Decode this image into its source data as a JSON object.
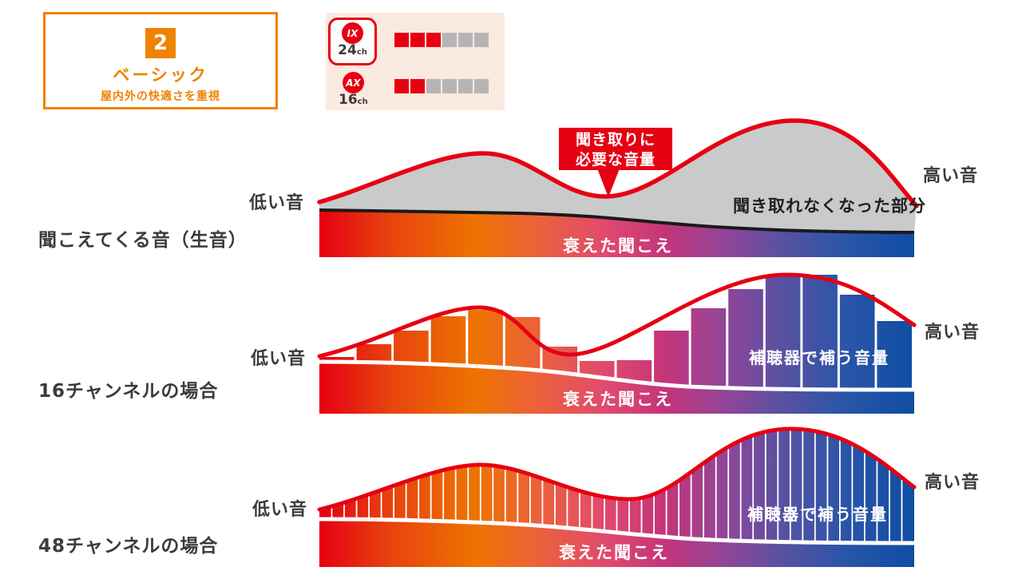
{
  "badge": {
    "number": "2",
    "title": "ベーシック",
    "subtitle": "屋内外の快適さを重視",
    "accent_color": "#ef8200"
  },
  "legend": {
    "bg_color": "#fbeae0",
    "filled_color": "#e60012",
    "empty_color": "#b5b5b6",
    "rows": [
      {
        "model": "IX",
        "num": "24",
        "unit": "ch",
        "filled": 3,
        "total": 6,
        "highlighted": true
      },
      {
        "model": "AX",
        "num": "16",
        "unit": "ch",
        "filled": 2,
        "total": 6,
        "highlighted": false
      }
    ]
  },
  "rows": [
    {
      "label": "聞こえてくる音（生音）"
    },
    {
      "label": "16チャンネルの場合"
    },
    {
      "label": "48チャンネルの場合"
    }
  ],
  "axis": {
    "low": "低い音",
    "high": "高い音"
  },
  "annotations": {
    "callout_line1": "聞き取りに",
    "callout_line2": "必要な音量",
    "lost_part": "聞き取れなくなった部分",
    "declined": "衰えた聞こえ",
    "aid_volume": "補聴器で補う音量"
  },
  "figure": {
    "red_curve_color": "#e60012",
    "gray_area_color": "#c9caca",
    "black_curve_color": "#1a1a1a",
    "gradient": [
      {
        "at": "0%",
        "color": "#e60012"
      },
      {
        "at": "12%",
        "color": "#e7430f"
      },
      {
        "at": "26%",
        "color": "#ee7300"
      },
      {
        "at": "36%",
        "color": "#ec6337"
      },
      {
        "at": "48%",
        "color": "#e04a6e"
      },
      {
        "at": "58%",
        "color": "#c43579"
      },
      {
        "at": "68%",
        "color": "#924598"
      },
      {
        "at": "78%",
        "color": "#5851a2"
      },
      {
        "at": "88%",
        "color": "#2b55a8"
      },
      {
        "at": "100%",
        "color": "#0e4da3"
      }
    ],
    "middle_bars": {
      "count": 16,
      "tops": [
        447,
        431,
        414,
        396,
        388,
        397,
        434,
        452,
        451,
        414,
        386,
        362,
        344,
        344,
        369,
        402
      ]
    },
    "bottom_bars": {
      "count": 48
    }
  }
}
